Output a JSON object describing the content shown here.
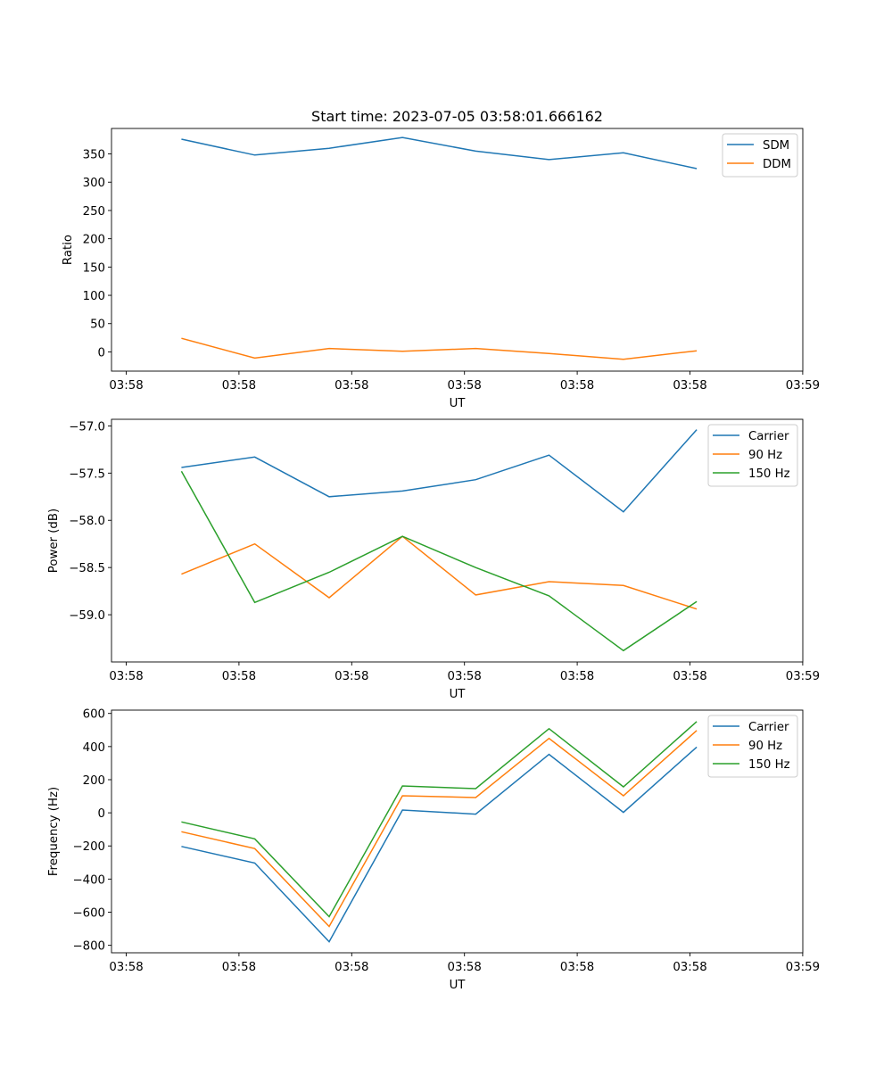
{
  "figure": {
    "title": "Start time: 2023-07-05 03:58:01.666162"
  },
  "chart_data": [
    {
      "type": "line",
      "id": "ratio",
      "title": "Start time: 2023-07-05 03:58:01.666162",
      "xlabel": "UT",
      "ylabel": "Ratio",
      "x_tick_labels": [
        "03:58",
        "03:58",
        "03:58",
        "03:58",
        "03:58",
        "03:58",
        "03:59"
      ],
      "x_tick_positions": [
        0,
        1,
        2,
        3,
        4,
        5,
        6
      ],
      "xlim": [
        0,
        6
      ],
      "x": [
        0.49,
        1.14,
        1.8,
        2.45,
        3.1,
        3.75,
        4.41,
        5.06
      ],
      "ylim": [
        -34,
        395
      ],
      "y_ticks": [
        0,
        50,
        100,
        150,
        200,
        250,
        300,
        350
      ],
      "y_tick_labels": [
        "0",
        "50",
        "100",
        "150",
        "200",
        "250",
        "300",
        "350"
      ],
      "legend_position": "upper-right",
      "series": [
        {
          "name": "SDM",
          "color": "#1f77b4",
          "values": [
            376,
            348,
            360,
            379,
            355,
            340,
            352,
            324
          ]
        },
        {
          "name": "DDM",
          "color": "#ff7f0e",
          "values": [
            24,
            -11,
            6,
            1,
            6,
            -3,
            -13,
            2
          ]
        }
      ]
    },
    {
      "type": "line",
      "id": "power",
      "title": "",
      "xlabel": "UT",
      "ylabel": "Power (dB)",
      "x_tick_labels": [
        "03:58",
        "03:58",
        "03:58",
        "03:58",
        "03:58",
        "03:58",
        "03:59"
      ],
      "x_tick_positions": [
        0,
        1,
        2,
        3,
        4,
        5,
        6
      ],
      "xlim": [
        0,
        6
      ],
      "x": [
        0.49,
        1.14,
        1.8,
        2.45,
        3.1,
        3.75,
        4.41,
        5.06
      ],
      "ylim": [
        -59.5,
        -56.93
      ],
      "y_ticks": [
        -59.0,
        -58.5,
        -58.0,
        -57.5,
        -57.0
      ],
      "y_tick_labels": [
        "−59.0",
        "−58.5",
        "−58.0",
        "−57.5",
        "−57.0"
      ],
      "legend_position": "upper-right",
      "series": [
        {
          "name": "Carrier",
          "color": "#1f77b4",
          "values": [
            -57.44,
            -57.33,
            -57.75,
            -57.69,
            -57.57,
            -57.31,
            -57.91,
            -57.04
          ]
        },
        {
          "name": "90 Hz",
          "color": "#ff7f0e",
          "values": [
            -58.57,
            -58.25,
            -58.82,
            -58.17,
            -58.79,
            -58.65,
            -58.69,
            -58.94
          ]
        },
        {
          "name": "150 Hz",
          "color": "#2ca02c",
          "values": [
            -57.48,
            -58.87,
            -58.55,
            -58.17,
            -58.5,
            -58.8,
            -59.38,
            -58.86
          ]
        }
      ]
    },
    {
      "type": "line",
      "id": "frequency",
      "title": "",
      "xlabel": "UT",
      "ylabel": "Frequency (Hz)",
      "x_tick_labels": [
        "03:58",
        "03:58",
        "03:58",
        "03:58",
        "03:58",
        "03:58",
        "03:59"
      ],
      "x_tick_positions": [
        0,
        1,
        2,
        3,
        4,
        5,
        6
      ],
      "xlim": [
        0,
        6
      ],
      "x": [
        0.49,
        1.14,
        1.8,
        2.45,
        3.1,
        3.75,
        4.41,
        5.06
      ],
      "ylim": [
        -845,
        620
      ],
      "y_ticks": [
        -800,
        -600,
        -400,
        -200,
        0,
        200,
        400,
        600
      ],
      "y_tick_labels": [
        "−800",
        "−600",
        "−400",
        "−200",
        "0",
        "200",
        "400",
        "600"
      ],
      "legend_position": "upper-right",
      "series": [
        {
          "name": "Carrier",
          "color": "#1f77b4",
          "values": [
            -203,
            -303,
            -778,
            17,
            -8,
            353,
            3,
            397
          ]
        },
        {
          "name": "90 Hz",
          "color": "#ff7f0e",
          "values": [
            -114,
            -216,
            -686,
            103,
            92,
            449,
            103,
            497
          ]
        },
        {
          "name": "150 Hz",
          "color": "#2ca02c",
          "values": [
            -55,
            -157,
            -627,
            162,
            146,
            508,
            157,
            551
          ]
        }
      ]
    }
  ]
}
